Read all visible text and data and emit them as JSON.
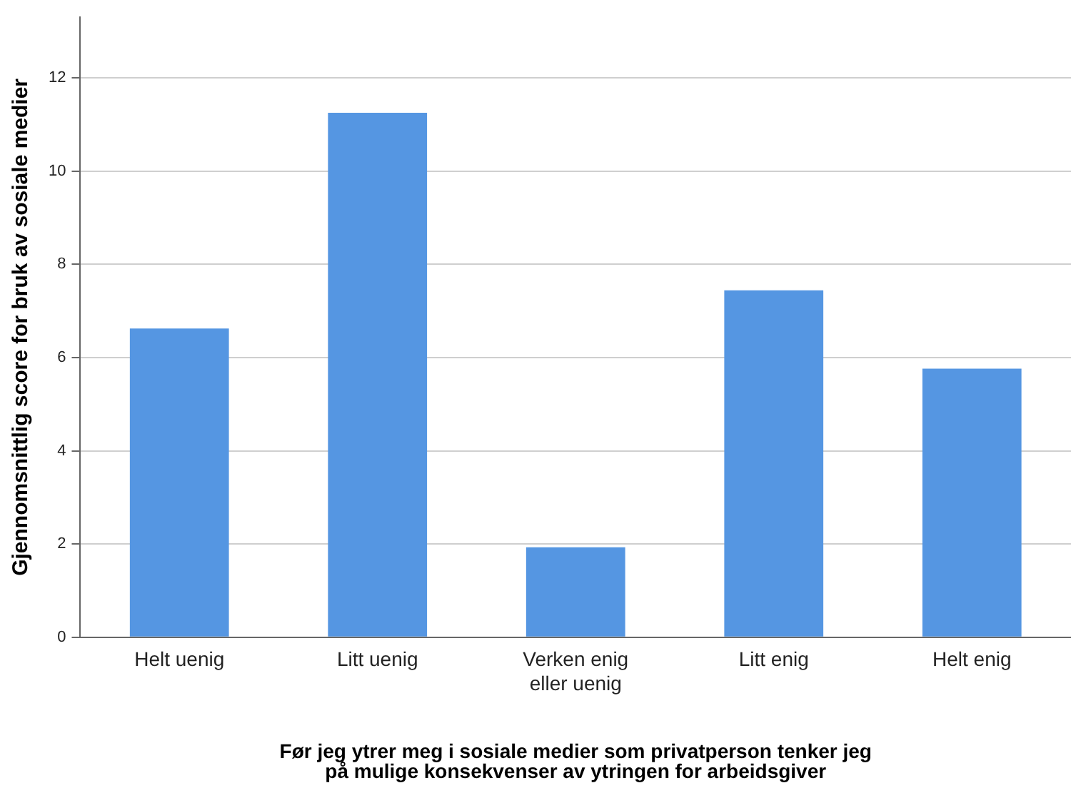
{
  "chart_data": {
    "type": "bar",
    "xlabel": "Før jeg ytrer meg i sosiale medier som privatperson tenker jeg\npå mulige konsekvenser av ytringen for arbeidsgiver",
    "ylabel": "Gjennomsnittlig score for bruk av sosiale medier",
    "categories": [
      "Helt uenig",
      "Litt uenig",
      "Verken enig\neller uenig",
      "Litt enig",
      "Helt enig"
    ],
    "values": [
      6.62,
      11.25,
      1.93,
      7.44,
      5.76
    ],
    "color": "#5596e2",
    "ylim": [
      0,
      13.3
    ],
    "yticks": [
      0,
      2,
      4,
      6,
      8,
      10,
      12
    ],
    "grid": "y",
    "legend": false
  }
}
